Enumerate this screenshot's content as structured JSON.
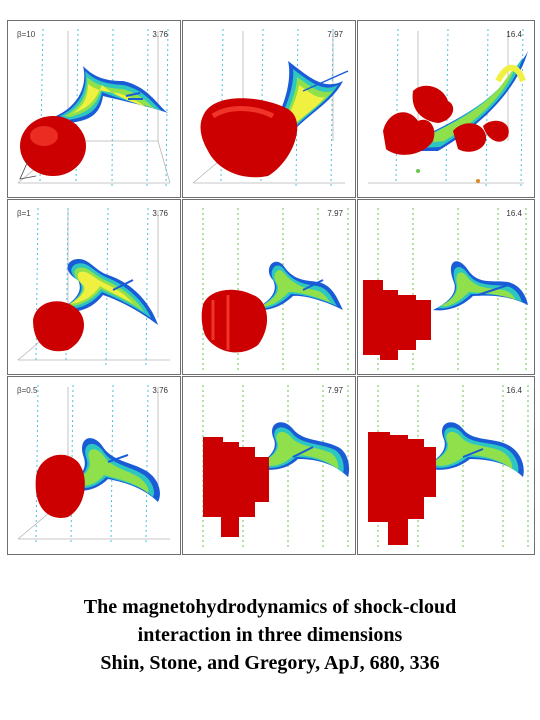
{
  "figure": {
    "rows": [
      {
        "beta_label": "β=10",
        "times": [
          "3.76",
          "7.97",
          "16.4"
        ]
      },
      {
        "beta_label": "β=1",
        "times": [
          "3.76",
          "7.97",
          "16.4"
        ]
      },
      {
        "beta_label": "β=0.5",
        "times": [
          "3.76",
          "7.97",
          "16.4"
        ]
      }
    ]
  },
  "caption": {
    "line1": "The magnetohydrodynamics of shock-cloud",
    "line2": "interaction in three dimensions",
    "line3": "Shin, Stone, and Gregory, ApJ, 680, 336"
  },
  "colors": {
    "cloud": "#cc0000",
    "cloud_highlight": "#ff4a3a",
    "tail_outer": "#1a5bd8",
    "tail_middle": "#2ec7c0",
    "tail_inner": "#8fe04a",
    "tail_core": "#f0f040",
    "field_line": "#4dbfe0",
    "field_arrow_green": "#6ac44a",
    "field_arrow_orange": "#e08a20",
    "frame": "#6f6f6f"
  }
}
